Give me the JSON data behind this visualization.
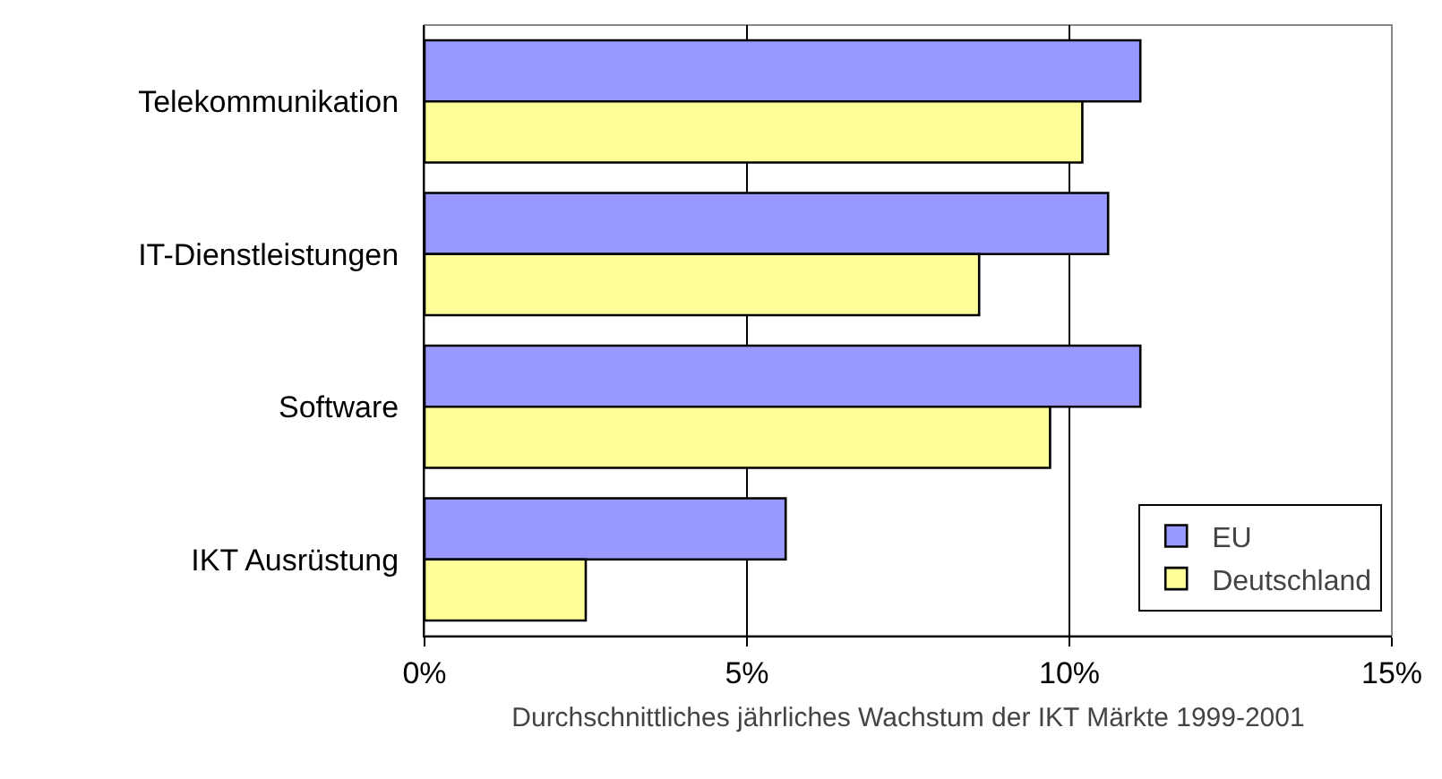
{
  "chart_data": {
    "type": "bar",
    "orientation": "horizontal",
    "xlabel": "Durchschnittliches jährliches Wachstum der IKT Märkte 1999-2001",
    "categories": [
      "Telekommunikation",
      "IT-Dienstleistungen",
      "Software",
      "IKT Ausrüstung"
    ],
    "series": [
      {
        "name": "EU",
        "color": "#9999ff",
        "values": [
          11.1,
          10.6,
          11.1,
          5.6
        ]
      },
      {
        "name": "Deutschland",
        "color": "#ffff99",
        "values": [
          10.2,
          8.6,
          9.7,
          2.5
        ]
      }
    ],
    "xlim": [
      0,
      15
    ],
    "xticks": [
      {
        "value": 0,
        "label": "0%"
      },
      {
        "value": 5,
        "label": "5%"
      },
      {
        "value": 10,
        "label": "10%"
      },
      {
        "value": 15,
        "label": "15%"
      }
    ],
    "grid": "x",
    "legend": "bottom right"
  }
}
